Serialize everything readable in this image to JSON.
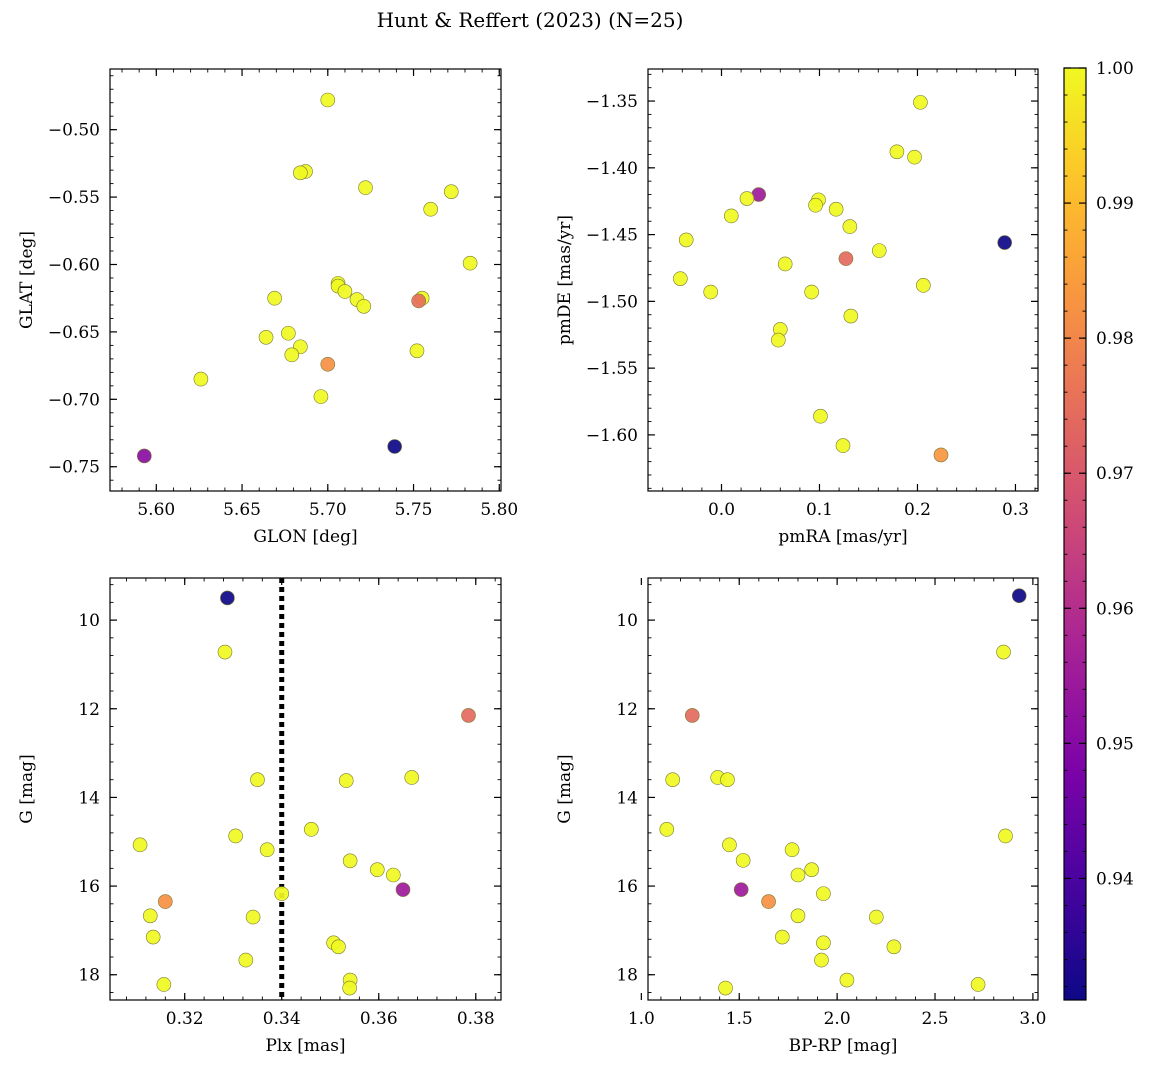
{
  "title": "Hunt & Reffert (2023) (N=25)",
  "colorbar": {
    "min": 0.931,
    "max": 1.0,
    "ticks": [
      "0.94",
      "0.95",
      "0.96",
      "0.97",
      "0.98",
      "0.99",
      "1.00"
    ],
    "colormap": "plasma"
  },
  "chart_data": [
    {
      "type": "scatter",
      "xlabel": "GLON [deg]",
      "ylabel": "GLAT [deg]",
      "xlim": [
        5.573,
        5.801
      ],
      "ylim": [
        -0.768,
        -0.455
      ],
      "xticks": [
        "5.60",
        "5.65",
        "5.70",
        "5.75",
        "5.80"
      ],
      "yticks": [
        "−0.50",
        "−0.55",
        "−0.60",
        "−0.65",
        "−0.70",
        "−0.75"
      ],
      "points": [
        {
          "x": 5.7,
          "y": -0.478,
          "c": 1.0
        },
        {
          "x": 5.687,
          "y": -0.531,
          "c": 1.0
        },
        {
          "x": 5.684,
          "y": -0.532,
          "c": 1.0
        },
        {
          "x": 5.722,
          "y": -0.543,
          "c": 1.0
        },
        {
          "x": 5.772,
          "y": -0.546,
          "c": 1.0
        },
        {
          "x": 5.76,
          "y": -0.559,
          "c": 1.0
        },
        {
          "x": 5.783,
          "y": -0.599,
          "c": 1.0
        },
        {
          "x": 5.706,
          "y": -0.614,
          "c": 1.0
        },
        {
          "x": 5.706,
          "y": -0.616,
          "c": 1.0
        },
        {
          "x": 5.71,
          "y": -0.62,
          "c": 1.0
        },
        {
          "x": 5.669,
          "y": -0.625,
          "c": 1.0
        },
        {
          "x": 5.717,
          "y": -0.626,
          "c": 1.0
        },
        {
          "x": 5.755,
          "y": -0.625,
          "c": 1.0
        },
        {
          "x": 5.753,
          "y": -0.627,
          "c": 0.975
        },
        {
          "x": 5.721,
          "y": -0.631,
          "c": 1.0
        },
        {
          "x": 5.677,
          "y": -0.651,
          "c": 1.0
        },
        {
          "x": 5.664,
          "y": -0.654,
          "c": 1.0
        },
        {
          "x": 5.684,
          "y": -0.661,
          "c": 1.0
        },
        {
          "x": 5.752,
          "y": -0.664,
          "c": 1.0
        },
        {
          "x": 5.679,
          "y": -0.667,
          "c": 1.0
        },
        {
          "x": 5.7,
          "y": -0.674,
          "c": 0.982
        },
        {
          "x": 5.626,
          "y": -0.685,
          "c": 1.0
        },
        {
          "x": 5.696,
          "y": -0.698,
          "c": 1.0
        },
        {
          "x": 5.739,
          "y": -0.735,
          "c": 0.931
        },
        {
          "x": 5.593,
          "y": -0.742,
          "c": 0.951
        }
      ]
    },
    {
      "type": "scatter",
      "xlabel": "pmRA [mas/yr]",
      "ylabel": "pmDE [mas/yr]",
      "xlim": [
        -0.075,
        0.323
      ],
      "ylim": [
        -1.642,
        -1.326
      ],
      "xticks": [
        "0.0",
        "0.1",
        "0.2",
        "0.3"
      ],
      "yticks": [
        "−1.35",
        "−1.40",
        "−1.45",
        "−1.50",
        "−1.55",
        "−1.60"
      ],
      "points": [
        {
          "x": 0.203,
          "y": -1.351,
          "c": 1.0
        },
        {
          "x": 0.179,
          "y": -1.388,
          "c": 1.0
        },
        {
          "x": 0.197,
          "y": -1.392,
          "c": 1.0
        },
        {
          "x": 0.038,
          "y": -1.42,
          "c": 0.955
        },
        {
          "x": 0.026,
          "y": -1.423,
          "c": 1.0
        },
        {
          "x": 0.099,
          "y": -1.424,
          "c": 1.0
        },
        {
          "x": 0.096,
          "y": -1.428,
          "c": 1.0
        },
        {
          "x": 0.117,
          "y": -1.431,
          "c": 1.0
        },
        {
          "x": 0.01,
          "y": -1.436,
          "c": 1.0
        },
        {
          "x": 0.131,
          "y": -1.444,
          "c": 1.0
        },
        {
          "x": -0.036,
          "y": -1.454,
          "c": 1.0
        },
        {
          "x": 0.289,
          "y": -1.456,
          "c": 0.931
        },
        {
          "x": 0.161,
          "y": -1.462,
          "c": 1.0
        },
        {
          "x": 0.127,
          "y": -1.468,
          "c": 0.974
        },
        {
          "x": 0.065,
          "y": -1.472,
          "c": 1.0
        },
        {
          "x": -0.042,
          "y": -1.483,
          "c": 1.0
        },
        {
          "x": 0.206,
          "y": -1.488,
          "c": 1.0
        },
        {
          "x": -0.011,
          "y": -1.493,
          "c": 1.0
        },
        {
          "x": 0.092,
          "y": -1.493,
          "c": 1.0
        },
        {
          "x": 0.132,
          "y": -1.511,
          "c": 1.0
        },
        {
          "x": 0.06,
          "y": -1.521,
          "c": 1.0
        },
        {
          "x": 0.058,
          "y": -1.529,
          "c": 1.0
        },
        {
          "x": 0.101,
          "y": -1.586,
          "c": 1.0
        },
        {
          "x": 0.124,
          "y": -1.608,
          "c": 1.0
        },
        {
          "x": 0.224,
          "y": -1.615,
          "c": 0.983
        }
      ]
    },
    {
      "type": "scatter",
      "xlabel": "Plx [mas]",
      "ylabel": "G [mag]",
      "xlim": [
        0.3046,
        0.3852
      ],
      "ylim": [
        18.57,
        9.05
      ],
      "xticks": [
        "0.32",
        "0.34",
        "0.36",
        "0.38"
      ],
      "yticks": [
        "10",
        "12",
        "14",
        "16",
        "18"
      ],
      "vline": {
        "x": 0.34,
        "style": "dotted"
      },
      "points": [
        {
          "x": 0.3288,
          "y": 9.5,
          "c": 0.931
        },
        {
          "x": 0.3283,
          "y": 10.72,
          "c": 1.0
        },
        {
          "x": 0.3785,
          "y": 12.15,
          "c": 0.974
        },
        {
          "x": 0.3668,
          "y": 13.55,
          "c": 1.0
        },
        {
          "x": 0.335,
          "y": 13.6,
          "c": 1.0
        },
        {
          "x": 0.3533,
          "y": 13.62,
          "c": 1.0
        },
        {
          "x": 0.3461,
          "y": 14.72,
          "c": 1.0
        },
        {
          "x": 0.3305,
          "y": 14.87,
          "c": 1.0
        },
        {
          "x": 0.3108,
          "y": 15.07,
          "c": 1.0
        },
        {
          "x": 0.337,
          "y": 15.18,
          "c": 1.0
        },
        {
          "x": 0.3541,
          "y": 15.43,
          "c": 1.0
        },
        {
          "x": 0.3597,
          "y": 15.63,
          "c": 1.0
        },
        {
          "x": 0.363,
          "y": 15.75,
          "c": 1.0
        },
        {
          "x": 0.365,
          "y": 16.08,
          "c": 0.955
        },
        {
          "x": 0.34,
          "y": 16.17,
          "c": 1.0
        },
        {
          "x": 0.316,
          "y": 16.35,
          "c": 0.982
        },
        {
          "x": 0.3129,
          "y": 16.67,
          "c": 1.0
        },
        {
          "x": 0.3341,
          "y": 16.7,
          "c": 1.0
        },
        {
          "x": 0.3135,
          "y": 17.15,
          "c": 1.0
        },
        {
          "x": 0.3507,
          "y": 17.28,
          "c": 1.0
        },
        {
          "x": 0.3517,
          "y": 17.37,
          "c": 1.0
        },
        {
          "x": 0.3326,
          "y": 17.67,
          "c": 1.0
        },
        {
          "x": 0.3541,
          "y": 18.12,
          "c": 1.0
        },
        {
          "x": 0.3157,
          "y": 18.22,
          "c": 1.0
        },
        {
          "x": 0.354,
          "y": 18.3,
          "c": 1.0
        }
      ]
    },
    {
      "type": "scatter",
      "xlabel": "BP-RP [mag]",
      "ylabel": "G [mag]",
      "xlim": [
        1.034,
        3.026
      ],
      "ylim": [
        18.57,
        9.05
      ],
      "xticks": [
        "1.0",
        "1.5",
        "2.0",
        "2.5",
        "3.0"
      ],
      "yticks": [
        "10",
        "12",
        "14",
        "16",
        "18"
      ],
      "points": [
        {
          "x": 2.93,
          "y": 9.45,
          "c": 0.931
        },
        {
          "x": 2.85,
          "y": 10.72,
          "c": 1.0
        },
        {
          "x": 1.26,
          "y": 12.15,
          "c": 0.974
        },
        {
          "x": 1.39,
          "y": 13.55,
          "c": 1.0
        },
        {
          "x": 1.44,
          "y": 13.6,
          "c": 1.0
        },
        {
          "x": 1.16,
          "y": 13.6,
          "c": 1.0
        },
        {
          "x": 1.13,
          "y": 14.72,
          "c": 1.0
        },
        {
          "x": 2.86,
          "y": 14.87,
          "c": 1.0
        },
        {
          "x": 1.45,
          "y": 15.07,
          "c": 1.0
        },
        {
          "x": 1.77,
          "y": 15.18,
          "c": 1.0
        },
        {
          "x": 1.52,
          "y": 15.42,
          "c": 1.0
        },
        {
          "x": 1.87,
          "y": 15.63,
          "c": 1.0
        },
        {
          "x": 1.8,
          "y": 15.75,
          "c": 1.0
        },
        {
          "x": 1.51,
          "y": 16.08,
          "c": 0.955
        },
        {
          "x": 1.93,
          "y": 16.17,
          "c": 1.0
        },
        {
          "x": 1.65,
          "y": 16.35,
          "c": 0.982
        },
        {
          "x": 1.8,
          "y": 16.67,
          "c": 1.0
        },
        {
          "x": 2.2,
          "y": 16.7,
          "c": 1.0
        },
        {
          "x": 1.72,
          "y": 17.15,
          "c": 1.0
        },
        {
          "x": 1.93,
          "y": 17.28,
          "c": 1.0
        },
        {
          "x": 2.29,
          "y": 17.37,
          "c": 1.0
        },
        {
          "x": 1.92,
          "y": 17.67,
          "c": 1.0
        },
        {
          "x": 2.05,
          "y": 18.12,
          "c": 1.0
        },
        {
          "x": 2.72,
          "y": 18.22,
          "c": 1.0
        },
        {
          "x": 1.43,
          "y": 18.3,
          "c": 1.0
        }
      ]
    }
  ]
}
